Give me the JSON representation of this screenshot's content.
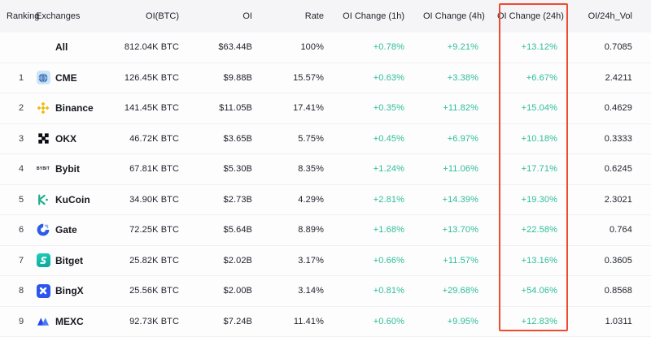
{
  "colors": {
    "positive": "#2dbd96",
    "highlight_border": "#ee4b31",
    "header_bg": "#f5f5f7"
  },
  "table": {
    "columns": [
      {
        "key": "ranking",
        "label": "Ranking"
      },
      {
        "key": "exchange",
        "label": "Exchanges"
      },
      {
        "key": "oi_btc",
        "label": "OI(BTC)"
      },
      {
        "key": "oi",
        "label": "OI"
      },
      {
        "key": "rate",
        "label": "Rate"
      },
      {
        "key": "oi_change_1h",
        "label": "OI Change (1h)"
      },
      {
        "key": "oi_change_4h",
        "label": "OI Change (4h)"
      },
      {
        "key": "oi_change_24h",
        "label": "OI Change (24h)"
      },
      {
        "key": "oi_24h_vol",
        "label": "OI/24h_Vol"
      }
    ],
    "highlighted_column": "oi_change_24h",
    "rows": [
      {
        "ranking": "",
        "exchange": "All",
        "icon": "",
        "oi_btc": "812.04K BTC",
        "oi": "$63.44B",
        "rate": "100%",
        "oi_change_1h": "+0.78%",
        "oi_change_4h": "+9.21%",
        "oi_change_24h": "+13.12%",
        "oi_24h_vol": "0.7085"
      },
      {
        "ranking": "1",
        "exchange": "CME",
        "icon": "cme-logo",
        "oi_btc": "126.45K BTC",
        "oi": "$9.88B",
        "rate": "15.57%",
        "oi_change_1h": "+0.63%",
        "oi_change_4h": "+3.38%",
        "oi_change_24h": "+6.67%",
        "oi_24h_vol": "2.4211"
      },
      {
        "ranking": "2",
        "exchange": "Binance",
        "icon": "binance-logo",
        "oi_btc": "141.45K BTC",
        "oi": "$11.05B",
        "rate": "17.41%",
        "oi_change_1h": "+0.35%",
        "oi_change_4h": "+11.82%",
        "oi_change_24h": "+15.04%",
        "oi_24h_vol": "0.4629"
      },
      {
        "ranking": "3",
        "exchange": "OKX",
        "icon": "okx-logo",
        "oi_btc": "46.72K BTC",
        "oi": "$3.65B",
        "rate": "5.75%",
        "oi_change_1h": "+0.45%",
        "oi_change_4h": "+6.97%",
        "oi_change_24h": "+10.18%",
        "oi_24h_vol": "0.3333"
      },
      {
        "ranking": "4",
        "exchange": "Bybit",
        "icon": "bybit-logo",
        "oi_btc": "67.81K BTC",
        "oi": "$5.30B",
        "rate": "8.35%",
        "oi_change_1h": "+1.24%",
        "oi_change_4h": "+11.06%",
        "oi_change_24h": "+17.71%",
        "oi_24h_vol": "0.6245"
      },
      {
        "ranking": "5",
        "exchange": "KuCoin",
        "icon": "kucoin-logo",
        "oi_btc": "34.90K BTC",
        "oi": "$2.73B",
        "rate": "4.29%",
        "oi_change_1h": "+2.81%",
        "oi_change_4h": "+14.39%",
        "oi_change_24h": "+19.30%",
        "oi_24h_vol": "2.3021"
      },
      {
        "ranking": "6",
        "exchange": "Gate",
        "icon": "gate-logo",
        "oi_btc": "72.25K BTC",
        "oi": "$5.64B",
        "rate": "8.89%",
        "oi_change_1h": "+1.68%",
        "oi_change_4h": "+13.70%",
        "oi_change_24h": "+22.58%",
        "oi_24h_vol": "0.764"
      },
      {
        "ranking": "7",
        "exchange": "Bitget",
        "icon": "bitget-logo",
        "oi_btc": "25.82K BTC",
        "oi": "$2.02B",
        "rate": "3.17%",
        "oi_change_1h": "+0.66%",
        "oi_change_4h": "+11.57%",
        "oi_change_24h": "+13.16%",
        "oi_24h_vol": "0.3605"
      },
      {
        "ranking": "8",
        "exchange": "BingX",
        "icon": "bingx-logo",
        "oi_btc": "25.56K BTC",
        "oi": "$2.00B",
        "rate": "3.14%",
        "oi_change_1h": "+0.81%",
        "oi_change_4h": "+29.68%",
        "oi_change_24h": "+54.06%",
        "oi_24h_vol": "0.8568"
      },
      {
        "ranking": "9",
        "exchange": "MEXC",
        "icon": "mexc-logo",
        "oi_btc": "92.73K BTC",
        "oi": "$7.24B",
        "rate": "11.41%",
        "oi_change_1h": "+0.60%",
        "oi_change_4h": "+9.95%",
        "oi_change_24h": "+12.83%",
        "oi_24h_vol": "1.0311"
      }
    ]
  }
}
